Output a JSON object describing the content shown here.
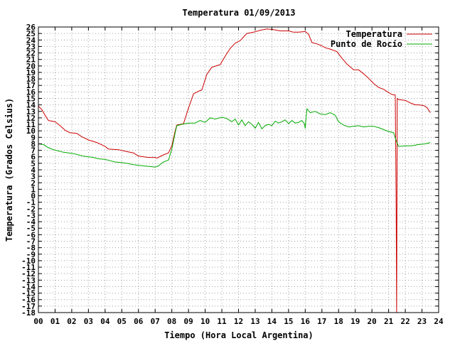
{
  "chart_data": {
    "type": "line",
    "title": "Temperatura 01/09/2013",
    "xlabel": "Tiempo (Hora Local Argentina)",
    "ylabel": "Temperatura (Grados Celsius)",
    "xlim": [
      0,
      24
    ],
    "ylim": [
      -18,
      26
    ],
    "x_ticks": [
      "00",
      "01",
      "02",
      "03",
      "04",
      "05",
      "06",
      "07",
      "08",
      "09",
      "10",
      "11",
      "12",
      "13",
      "14",
      "15",
      "16",
      "17",
      "18",
      "19",
      "20",
      "21",
      "22",
      "23",
      "24"
    ],
    "y_ticks": [
      "-18",
      "-17",
      "-16",
      "-15",
      "-14",
      "-13",
      "-12",
      "-11",
      "-10",
      "-9",
      "-8",
      "-7",
      "-6",
      "-5",
      "-4",
      "-3",
      "-2",
      "-1",
      "0",
      "1",
      "2",
      "3",
      "4",
      "5",
      "6",
      "7",
      "8",
      "9",
      "10",
      "11",
      "12",
      "13",
      "14",
      "15",
      "16",
      "17",
      "18",
      "19",
      "20",
      "21",
      "22",
      "23",
      "24",
      "25",
      "26"
    ],
    "grid": true,
    "legend_position": "top-right",
    "series": [
      {
        "name": "Temperatura",
        "color": "#cc0000",
        "points": [
          [
            0.0,
            13.8
          ],
          [
            0.2,
            13.3
          ],
          [
            0.4,
            12.4
          ],
          [
            0.6,
            11.6
          ],
          [
            1.0,
            11.4
          ],
          [
            1.3,
            10.8
          ],
          [
            1.6,
            10.1
          ],
          [
            1.9,
            9.7
          ],
          [
            2.3,
            9.6
          ],
          [
            2.6,
            9.1
          ],
          [
            3.0,
            8.6
          ],
          [
            3.5,
            8.2
          ],
          [
            4.0,
            7.6
          ],
          [
            4.2,
            7.2
          ],
          [
            4.8,
            7.1
          ],
          [
            5.3,
            6.8
          ],
          [
            5.7,
            6.6
          ],
          [
            6.0,
            6.1
          ],
          [
            6.6,
            5.9
          ],
          [
            7.0,
            5.9
          ],
          [
            7.1,
            5.8
          ],
          [
            7.5,
            6.3
          ],
          [
            7.8,
            6.6
          ],
          [
            8.0,
            7.7
          ],
          [
            8.2,
            10.0
          ],
          [
            8.3,
            10.9
          ],
          [
            8.7,
            11.1
          ],
          [
            9.0,
            13.5
          ],
          [
            9.3,
            15.7
          ],
          [
            9.6,
            16.1
          ],
          [
            9.8,
            16.3
          ],
          [
            10.1,
            18.7
          ],
          [
            10.4,
            19.8
          ],
          [
            10.9,
            20.2
          ],
          [
            11.2,
            21.5
          ],
          [
            11.5,
            22.7
          ],
          [
            11.8,
            23.5
          ],
          [
            12.1,
            23.9
          ],
          [
            12.5,
            25.0
          ],
          [
            12.9,
            25.2
          ],
          [
            13.3,
            25.5
          ],
          [
            13.7,
            25.7
          ],
          [
            14.1,
            25.6
          ],
          [
            14.5,
            25.4
          ],
          [
            15.0,
            25.4
          ],
          [
            15.3,
            25.2
          ],
          [
            15.6,
            25.2
          ],
          [
            16.0,
            25.3
          ],
          [
            16.2,
            24.9
          ],
          [
            16.4,
            23.6
          ],
          [
            16.7,
            23.4
          ],
          [
            17.0,
            23.1
          ],
          [
            17.2,
            22.8
          ],
          [
            17.5,
            22.6
          ],
          [
            17.9,
            22.2
          ],
          [
            18.2,
            21.2
          ],
          [
            18.5,
            20.3
          ],
          [
            18.9,
            19.4
          ],
          [
            19.2,
            19.4
          ],
          [
            19.5,
            18.8
          ],
          [
            19.8,
            18.1
          ],
          [
            20.1,
            17.3
          ],
          [
            20.4,
            16.7
          ],
          [
            20.7,
            16.4
          ],
          [
            21.0,
            15.9
          ],
          [
            21.2,
            15.6
          ],
          [
            21.4,
            15.5
          ],
          [
            21.45,
            -1.0
          ],
          [
            21.48,
            -18.0
          ],
          [
            21.52,
            15.0
          ],
          [
            21.6,
            14.8
          ],
          [
            22.0,
            14.7
          ],
          [
            22.3,
            14.3
          ],
          [
            22.6,
            14.0
          ],
          [
            22.8,
            14.0
          ],
          [
            23.1,
            13.9
          ],
          [
            23.3,
            13.6
          ],
          [
            23.5,
            12.8
          ]
        ]
      },
      {
        "name": "Punto de Rocío",
        "color": "#00aa00",
        "points": [
          [
            0.0,
            8.0
          ],
          [
            0.3,
            7.9
          ],
          [
            0.6,
            7.4
          ],
          [
            0.9,
            7.1
          ],
          [
            1.2,
            6.9
          ],
          [
            1.5,
            6.7
          ],
          [
            1.8,
            6.6
          ],
          [
            2.1,
            6.5
          ],
          [
            2.4,
            6.3
          ],
          [
            2.7,
            6.1
          ],
          [
            3.0,
            6.0
          ],
          [
            3.3,
            5.9
          ],
          [
            3.6,
            5.7
          ],
          [
            4.0,
            5.6
          ],
          [
            4.3,
            5.4
          ],
          [
            4.6,
            5.2
          ],
          [
            5.0,
            5.1
          ],
          [
            5.3,
            5.0
          ],
          [
            5.7,
            4.8
          ],
          [
            6.0,
            4.7
          ],
          [
            6.3,
            4.6
          ],
          [
            6.7,
            4.5
          ],
          [
            7.0,
            4.4
          ],
          [
            7.2,
            4.6
          ],
          [
            7.5,
            5.2
          ],
          [
            7.8,
            5.5
          ],
          [
            8.0,
            7.2
          ],
          [
            8.2,
            9.7
          ],
          [
            8.3,
            10.8
          ],
          [
            8.6,
            11.0
          ],
          [
            9.0,
            11.2
          ],
          [
            9.4,
            11.2
          ],
          [
            9.7,
            11.6
          ],
          [
            10.0,
            11.3
          ],
          [
            10.3,
            12.0
          ],
          [
            10.6,
            11.8
          ],
          [
            11.0,
            12.1
          ],
          [
            11.3,
            11.9
          ],
          [
            11.6,
            11.4
          ],
          [
            11.8,
            11.8
          ],
          [
            12.0,
            10.9
          ],
          [
            12.2,
            11.7
          ],
          [
            12.4,
            10.8
          ],
          [
            12.6,
            11.4
          ],
          [
            12.8,
            11.0
          ],
          [
            13.0,
            10.4
          ],
          [
            13.2,
            11.3
          ],
          [
            13.4,
            10.3
          ],
          [
            13.6,
            10.8
          ],
          [
            13.8,
            11.0
          ],
          [
            14.0,
            10.8
          ],
          [
            14.2,
            11.5
          ],
          [
            14.4,
            11.2
          ],
          [
            14.6,
            11.4
          ],
          [
            14.8,
            11.7
          ],
          [
            15.0,
            11.1
          ],
          [
            15.2,
            11.6
          ],
          [
            15.4,
            11.2
          ],
          [
            15.6,
            11.3
          ],
          [
            15.8,
            11.6
          ],
          [
            15.95,
            11.1
          ],
          [
            16.0,
            10.4
          ],
          [
            16.1,
            13.4
          ],
          [
            16.3,
            12.8
          ],
          [
            16.6,
            13.0
          ],
          [
            16.9,
            12.6
          ],
          [
            17.2,
            12.5
          ],
          [
            17.5,
            12.8
          ],
          [
            17.8,
            12.4
          ],
          [
            18.0,
            11.4
          ],
          [
            18.3,
            10.9
          ],
          [
            18.6,
            10.6
          ],
          [
            18.9,
            10.7
          ],
          [
            19.2,
            10.8
          ],
          [
            19.5,
            10.6
          ],
          [
            19.8,
            10.7
          ],
          [
            20.1,
            10.7
          ],
          [
            20.4,
            10.5
          ],
          [
            20.7,
            10.2
          ],
          [
            21.0,
            9.9
          ],
          [
            21.3,
            9.7
          ],
          [
            21.45,
            8.5
          ],
          [
            21.6,
            7.6
          ],
          [
            22.0,
            7.7
          ],
          [
            22.4,
            7.7
          ],
          [
            22.8,
            7.9
          ],
          [
            23.2,
            8.0
          ],
          [
            23.5,
            8.2
          ]
        ]
      }
    ]
  }
}
